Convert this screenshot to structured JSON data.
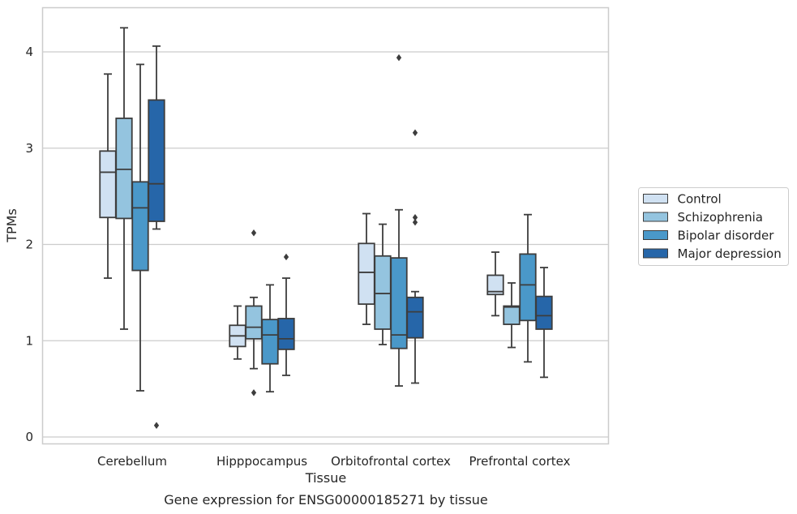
{
  "chart_data": {
    "type": "box",
    "title": "",
    "caption": "Gene expression for ENSG00000185271 by tissue",
    "xlabel": "Tissue",
    "ylabel": "TPMs",
    "ylim": [
      -0.08,
      4.46
    ],
    "yticks": [
      0,
      1,
      2,
      3,
      4
    ],
    "grid": "horizontal",
    "legend_position": "right",
    "categories": [
      "Cerebellum",
      "Hipppocampus",
      "Orbitofrontal cortex",
      "Prefrontal cortex"
    ],
    "series": [
      {
        "name": "Control",
        "color": "#d0e1f2",
        "boxes": [
          {
            "whislo": 1.65,
            "q1": 2.28,
            "med": 2.75,
            "q3": 2.97,
            "whishi": 3.77,
            "fliers": []
          },
          {
            "whislo": 0.81,
            "q1": 0.94,
            "med": 1.05,
            "q3": 1.16,
            "whishi": 1.36,
            "fliers": []
          },
          {
            "whislo": 1.17,
            "q1": 1.38,
            "med": 1.71,
            "q3": 2.01,
            "whishi": 2.32,
            "fliers": []
          },
          {
            "whislo": 1.26,
            "q1": 1.48,
            "med": 1.51,
            "q3": 1.68,
            "whishi": 1.92,
            "fliers": []
          }
        ]
      },
      {
        "name": "Schizophrenia",
        "color": "#94c4df",
        "boxes": [
          {
            "whislo": 1.12,
            "q1": 2.27,
            "med": 2.78,
            "q3": 3.31,
            "whishi": 4.25,
            "fliers": []
          },
          {
            "whislo": 0.71,
            "q1": 1.02,
            "med": 1.14,
            "q3": 1.36,
            "whishi": 1.45,
            "fliers": [
              0.46,
              2.12
            ]
          },
          {
            "whislo": 0.96,
            "q1": 1.12,
            "med": 1.49,
            "q3": 1.88,
            "whishi": 2.21,
            "fliers": []
          },
          {
            "whislo": 0.93,
            "q1": 1.17,
            "med": 1.35,
            "q3": 1.36,
            "whishi": 1.6,
            "fliers": []
          }
        ]
      },
      {
        "name": "Bipolar disorder",
        "color": "#4a98c9",
        "boxes": [
          {
            "whislo": 0.48,
            "q1": 1.73,
            "med": 2.38,
            "q3": 2.65,
            "whishi": 3.87,
            "fliers": []
          },
          {
            "whislo": 0.47,
            "q1": 0.76,
            "med": 1.06,
            "q3": 1.22,
            "whishi": 1.58,
            "fliers": []
          },
          {
            "whislo": 0.53,
            "q1": 0.92,
            "med": 1.06,
            "q3": 1.86,
            "whishi": 2.36,
            "fliers": [
              3.94
            ]
          },
          {
            "whislo": 0.78,
            "q1": 1.21,
            "med": 1.58,
            "q3": 1.9,
            "whishi": 2.31,
            "fliers": []
          }
        ]
      },
      {
        "name": "Major depression",
        "color": "#2666a9",
        "boxes": [
          {
            "whislo": 2.16,
            "q1": 2.24,
            "med": 2.63,
            "q3": 3.5,
            "whishi": 4.06,
            "fliers": [
              0.12
            ]
          },
          {
            "whislo": 0.64,
            "q1": 0.91,
            "med": 1.02,
            "q3": 1.23,
            "whishi": 1.65,
            "fliers": [
              1.87
            ]
          },
          {
            "whislo": 0.56,
            "q1": 1.03,
            "med": 1.3,
            "q3": 1.45,
            "whishi": 1.51,
            "fliers": [
              2.23,
              2.28,
              3.16
            ]
          },
          {
            "whislo": 0.62,
            "q1": 1.12,
            "med": 1.26,
            "q3": 1.46,
            "whishi": 1.76,
            "fliers": []
          }
        ]
      }
    ]
  }
}
